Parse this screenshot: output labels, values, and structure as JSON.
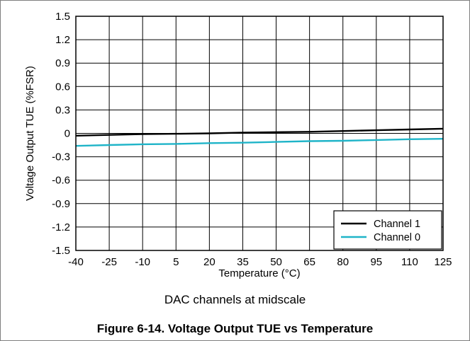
{
  "figure": {
    "note": "DAC channels at midscale",
    "caption": "Figure 6-14. Voltage Output TUE vs Temperature"
  },
  "chart_data": {
    "type": "line",
    "xlabel": "Temperature (°C)",
    "ylabel": "Voltage Output TUE (%FSR)",
    "xlim": [
      -40,
      125
    ],
    "ylim": [
      -1.5,
      1.5
    ],
    "x_ticks": [
      -40,
      -25,
      -10,
      5,
      20,
      35,
      50,
      65,
      80,
      95,
      110,
      125
    ],
    "y_ticks": [
      1.5,
      1.2,
      0.9,
      0.6,
      0.3,
      0,
      -0.3,
      -0.6,
      -0.9,
      -1.2,
      -1.5
    ],
    "grid": true,
    "legend": "bottom-right",
    "series": [
      {
        "name": "Channel 1",
        "color": "#000000",
        "x": [
          -40,
          -25,
          -10,
          5,
          20,
          35,
          50,
          65,
          80,
          95,
          110,
          125
        ],
        "y": [
          -0.03,
          -0.02,
          -0.01,
          -0.005,
          0.0,
          0.01,
          0.015,
          0.02,
          0.03,
          0.04,
          0.05,
          0.06
        ]
      },
      {
        "name": "Channel 0",
        "color": "#1fb4c8",
        "x": [
          -40,
          -25,
          -10,
          5,
          20,
          35,
          50,
          65,
          80,
          95,
          110,
          125
        ],
        "y": [
          -0.16,
          -0.15,
          -0.14,
          -0.135,
          -0.125,
          -0.12,
          -0.11,
          -0.1,
          -0.095,
          -0.085,
          -0.075,
          -0.07
        ]
      }
    ]
  }
}
